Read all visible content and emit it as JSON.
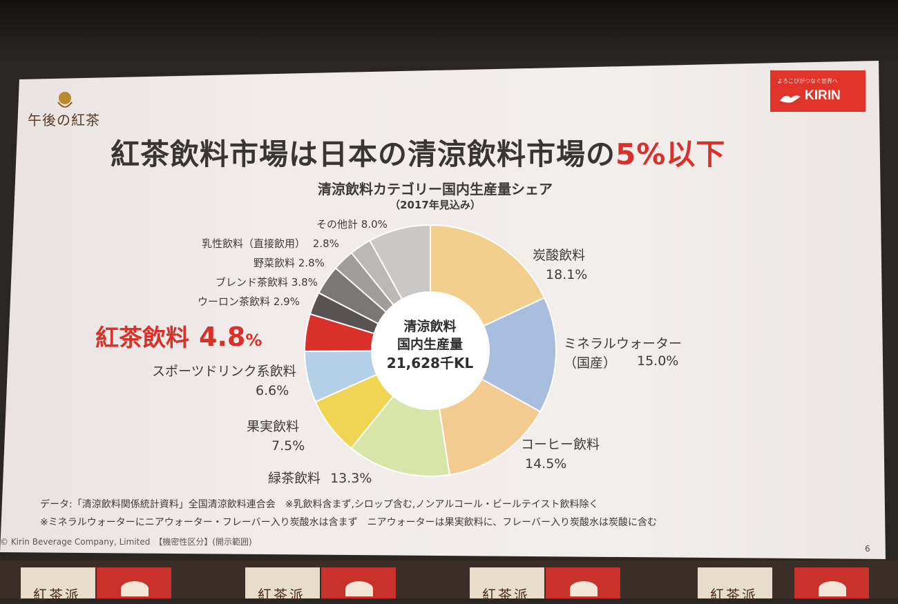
{
  "slide": {
    "brand": "午後の紅茶",
    "company_badge": {
      "tagline": "よろこびがつなぐ世界へ",
      "name": "KIRIN"
    },
    "headline": {
      "main": "紅茶飲料市場は日本の清涼飲料市場の",
      "accent": "5%以下"
    },
    "page_number": "6",
    "footnote_1": "データ:「清涼飲料関係統計資料」全国清涼飲料連合会　※乳飲料含まず,シロップ含む,ノンアルコール・ビールテイスト飲料除く",
    "footnote_2": "※ミネラルウォーターにニアウォーター・フレーバー入り炭酸水は含まず　ニアウォーターは果実飲料に、フレーバー入り炭酸水は炭酸に含む",
    "copyright": "© Kirin Beverage Company, Limited　【機密性区分】(開示範囲)"
  },
  "chart_data": {
    "type": "pie",
    "title": "清涼飲料カテゴリー国内生産量シェア",
    "subtitle": "（2017年見込み）",
    "center_label": {
      "line1": "清涼飲料",
      "line2": "国内生産量",
      "line3": "21,628千KL"
    },
    "slices": [
      {
        "name": "炭酸飲料",
        "value": 18.1,
        "label": "18.1%",
        "color": "#f2cf8c"
      },
      {
        "name": "ミネラルウォーター（国産）",
        "value": 15.0,
        "label": "15.0%",
        "color": "#a9bedd"
      },
      {
        "name": "コーヒー飲料",
        "value": 14.5,
        "label": "14.5%",
        "color": "#f3cb90"
      },
      {
        "name": "緑茶飲料",
        "value": 13.3,
        "label": "13.3%",
        "color": "#d7e5a9"
      },
      {
        "name": "果実飲料",
        "value": 7.5,
        "label": "7.5%",
        "color": "#efd552"
      },
      {
        "name": "スポーツドリンク系飲料",
        "value": 6.6,
        "label": "6.6%",
        "color": "#b4cfe8"
      },
      {
        "name": "紅茶飲料",
        "value": 4.8,
        "label": "4.8",
        "color": "#d9302a"
      },
      {
        "name": "ウーロン茶飲料",
        "value": 2.9,
        "label": "2.9%",
        "color": "#585350"
      },
      {
        "name": "ブレンド茶飲料",
        "value": 3.8,
        "label": "3.8%",
        "color": "#7b7775"
      },
      {
        "name": "野菜飲料",
        "value": 2.8,
        "label": "2.8%",
        "color": "#a09d9b"
      },
      {
        "name": "乳性飲料（直接飲用）",
        "value": 2.8,
        "label": "2.8%",
        "color": "#bbb8b6"
      },
      {
        "name": "その他計",
        "value": 8.0,
        "label": "8.0%",
        "color": "#cac8c6"
      }
    ],
    "highlight_unit": "%"
  },
  "room": {
    "banners": [
      "紅茶派",
      "紅茶派",
      "紅茶派",
      "紅茶派"
    ]
  }
}
